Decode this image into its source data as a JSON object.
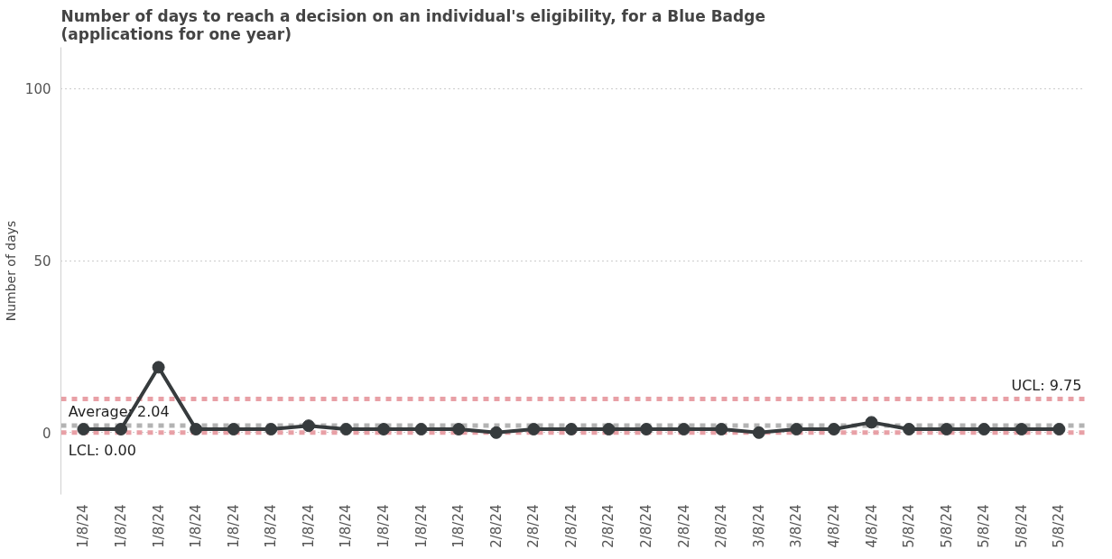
{
  "chart_data": {
    "type": "line",
    "title": "Number of days to reach a decision on an individual's eligibility, for a Blue Badge (applications for one year)",
    "ylabel": "Number of days",
    "categories": [
      "1/8/24",
      "1/8/24",
      "1/8/24",
      "1/8/24",
      "1/8/24",
      "1/8/24",
      "1/8/24",
      "1/8/24",
      "1/8/24",
      "1/8/24",
      "1/8/24",
      "2/8/24",
      "2/8/24",
      "2/8/24",
      "2/8/24",
      "2/8/24",
      "2/8/24",
      "2/8/24",
      "3/8/24",
      "3/8/24",
      "4/8/24",
      "4/8/24",
      "5/8/24",
      "5/8/24",
      "5/8/24",
      "5/8/24",
      "5/8/24"
    ],
    "series": [
      {
        "color": "#363b3d",
        "values": [
          1,
          1,
          19,
          1,
          1,
          1,
          2,
          1,
          1,
          1,
          1,
          0,
          1,
          1,
          1,
          1,
          1,
          1,
          0,
          1,
          1,
          3,
          1,
          1,
          1,
          1,
          1
        ]
      }
    ],
    "ylim": [
      -18,
      112
    ],
    "yticks": [
      0,
      50,
      100
    ],
    "grid": "y",
    "marker": "circle",
    "line_style": "solid",
    "ref_lines": [
      {
        "axis": "y",
        "value": 9.75,
        "label": "UCL: 9.75",
        "color": "#e8a0a6",
        "line_style": "dashed"
      },
      {
        "axis": "y",
        "value": 2.04,
        "label": "Average: 2.04",
        "color": "#b3b3b3",
        "line_style": "dashed"
      },
      {
        "axis": "y",
        "value": 0,
        "label": "LCL: 0.00",
        "color": "#e8a0a6",
        "line_style": "dashed"
      }
    ]
  }
}
